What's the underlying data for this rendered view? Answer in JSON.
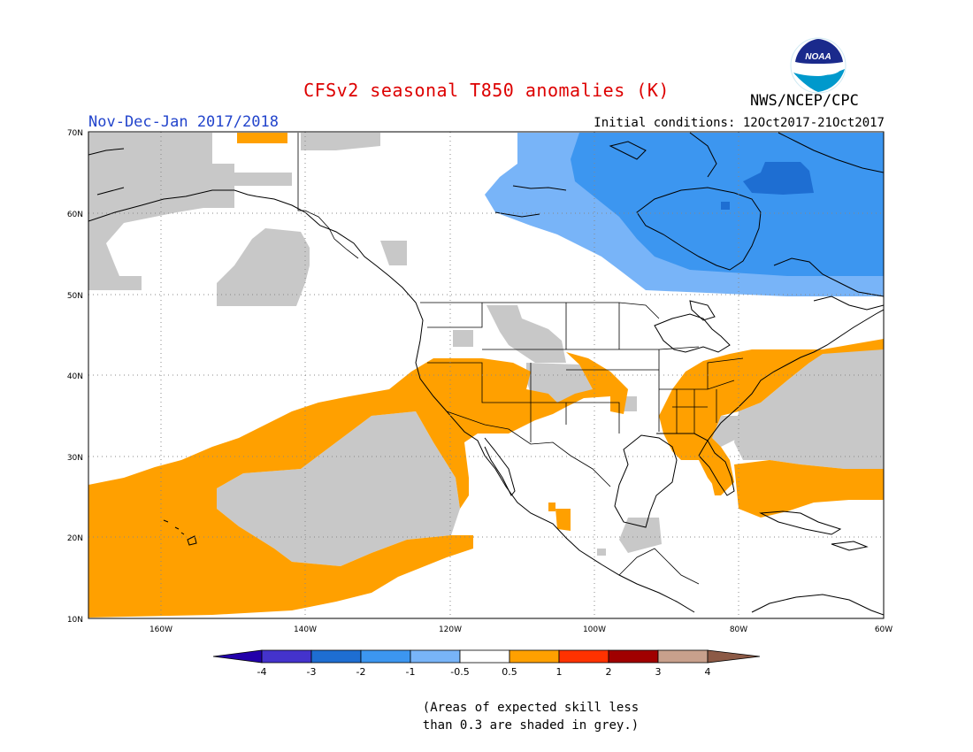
{
  "header": {
    "title": "CFSv2 seasonal T850 anomalies (K)",
    "period": "Nov-Dec-Jan 2017/2018",
    "initial_conditions": "Initial conditions: 12Oct2017-21Oct2017",
    "agency": "NWS/NCEP/CPC",
    "logo_text": "NOAA"
  },
  "map": {
    "projection": "lat-lon",
    "lon_range": [
      -170,
      -60
    ],
    "lat_range": [
      10,
      70
    ],
    "grid": "dotted",
    "lat_labels": [
      "70N",
      "60N",
      "50N",
      "40N",
      "30N",
      "20N",
      "10N"
    ],
    "lon_labels": [
      "160W",
      "140W",
      "120W",
      "100W",
      "80W",
      "60W"
    ]
  },
  "colorbar": {
    "labels": [
      "-4",
      "-3",
      "-2",
      "-1",
      "-0.5",
      "0.5",
      "1",
      "2",
      "3",
      "4"
    ],
    "colors": [
      "#2200aa",
      "#4433cc",
      "#1e6ed2",
      "#3c96f0",
      "#78b4f8",
      "#ffffff",
      "#ffa000",
      "#ff3200",
      "#a00000",
      "#c8a08c",
      "#8c5a46"
    ],
    "skill_shade_color": "#c8c8c8"
  },
  "note": {
    "line1": "(Areas of expected skill less",
    "line2": "than 0.3 are shaded in grey.)"
  }
}
